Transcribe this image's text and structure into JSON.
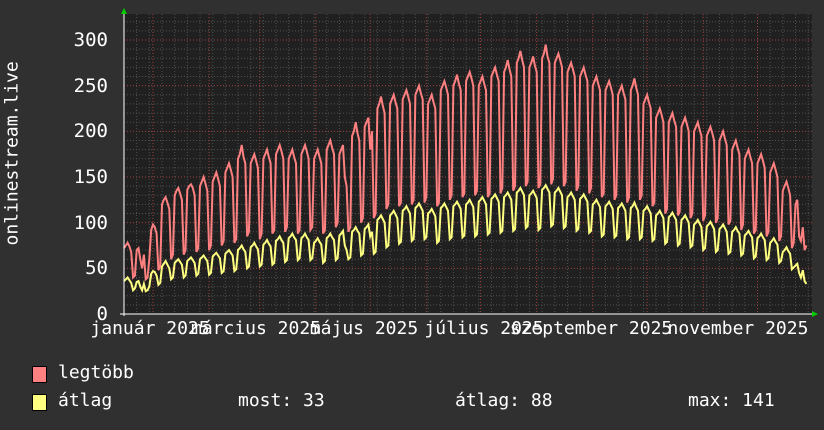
{
  "chart_data": {
    "type": "line",
    "ylabel": "onlinestream.live",
    "ylim": [
      0,
      330
    ],
    "yticks": [
      "0",
      "50",
      "100",
      "150",
      "200",
      "250",
      "300"
    ],
    "xticks": [
      "január 2025",
      "március 2025",
      "május 2025",
      "július 2025",
      "szeptember 2025",
      "november 2025"
    ],
    "x_start": "2024-12-16",
    "x_step": "1 day",
    "grid": true,
    "colors": {
      "background": "#303030",
      "plot": "#202020",
      "grid_minor": "#505050",
      "grid_major": "#a04040",
      "arrow": "#00cc00"
    },
    "series": [
      {
        "name": "legtöbb",
        "color": "#ff8080",
        "values": [
          72,
          75,
          78,
          74,
          68,
          40,
          42,
          70,
          72,
          60,
          50,
          65,
          38,
          40,
          60,
          92,
          98,
          95,
          88,
          48,
          52,
          120,
          125,
          128,
          122,
          115,
          60,
          65,
          130,
          135,
          138,
          132,
          125,
          65,
          70,
          136,
          140,
          142,
          138,
          130,
          68,
          72,
          140,
          145,
          150,
          143,
          135,
          70,
          75,
          145,
          150,
          155,
          148,
          140,
          75,
          80,
          155,
          160,
          165,
          158,
          150,
          78,
          82,
          170,
          175,
          185,
          172,
          165,
          85,
          90,
          165,
          170,
          175,
          168,
          160,
          82,
          88,
          170,
          175,
          180,
          172,
          165,
          88,
          92,
          175,
          180,
          185,
          178,
          170,
          90,
          95,
          170,
          175,
          180,
          172,
          165,
          88,
          92,
          175,
          180,
          185,
          178,
          170,
          92,
          95,
          170,
          175,
          180,
          172,
          165,
          88,
          92,
          180,
          185,
          190,
          182,
          175,
          95,
          100,
          175,
          180,
          185,
          150,
          140,
          90,
          95,
          195,
          200,
          210,
          198,
          190,
          100,
          105,
          205,
          210,
          215,
          180,
          200,
          105,
          110,
          225,
          230,
          238,
          228,
          220,
          115,
          120,
          230,
          235,
          240,
          232,
          225,
          118,
          122,
          235,
          240,
          245,
          238,
          230,
          120,
          125,
          240,
          245,
          250,
          242,
          235,
          122,
          128,
          230,
          235,
          240,
          232,
          225,
          118,
          122,
          245,
          250,
          255,
          248,
          240,
          125,
          130,
          250,
          255,
          262,
          252,
          245,
          128,
          132,
          255,
          260,
          265,
          258,
          250,
          130,
          135,
          250,
          255,
          260,
          252,
          245,
          128,
          132,
          260,
          265,
          270,
          262,
          255,
          132,
          138,
          265,
          270,
          278,
          268,
          260,
          135,
          140,
          275,
          280,
          288,
          278,
          270,
          140,
          145,
          270,
          275,
          282,
          272,
          265,
          138,
          142,
          280,
          285,
          295,
          282,
          275,
          142,
          148,
          275,
          280,
          285,
          278,
          270,
          140,
          145,
          265,
          270,
          275,
          268,
          260,
          135,
          140,
          260,
          265,
          270,
          262,
          255,
          132,
          138,
          250,
          255,
          260,
          252,
          245,
          128,
          132,
          245,
          250,
          255,
          248,
          240,
          125,
          130,
          240,
          245,
          250,
          242,
          235,
          122,
          128,
          245,
          250,
          258,
          248,
          240,
          125,
          130,
          230,
          235,
          240,
          232,
          225,
          118,
          122,
          215,
          220,
          225,
          218,
          210,
          110,
          115,
          210,
          215,
          220,
          212,
          205,
          108,
          112,
          205,
          210,
          215,
          208,
          200,
          105,
          110,
          200,
          205,
          210,
          202,
          195,
          102,
          108,
          195,
          200,
          205,
          198,
          190,
          100,
          105,
          190,
          195,
          200,
          192,
          185,
          98,
          102,
          180,
          185,
          190,
          182,
          175,
          92,
          98,
          170,
          175,
          180,
          172,
          165,
          88,
          92,
          165,
          170,
          175,
          168,
          160,
          85,
          90,
          155,
          160,
          165,
          158,
          150,
          80,
          85,
          135,
          140,
          145,
          138,
          130,
          72,
          78,
          120,
          125,
          85,
          80,
          95,
          70,
          75
        ]
      },
      {
        "name": "átlag",
        "color": "#ffff80",
        "values": [
          36,
          38,
          40,
          37,
          34,
          26,
          28,
          35,
          36,
          30,
          26,
          33,
          25,
          26,
          30,
          44,
          47,
          46,
          42,
          32,
          34,
          52,
          55,
          58,
          54,
          50,
          38,
          40,
          56,
          58,
          60,
          57,
          54,
          40,
          42,
          58,
          60,
          62,
          59,
          56,
          42,
          44,
          60,
          62,
          64,
          61,
          58,
          43,
          45,
          63,
          65,
          67,
          64,
          61,
          45,
          47,
          66,
          68,
          70,
          67,
          64,
          47,
          49,
          70,
          72,
          75,
          71,
          68,
          50,
          52,
          73,
          75,
          78,
          74,
          71,
          52,
          54,
          76,
          78,
          81,
          77,
          74,
          54,
          56,
          80,
          82,
          85,
          81,
          78,
          57,
          59,
          83,
          85,
          88,
          84,
          81,
          59,
          61,
          83,
          85,
          88,
          84,
          81,
          59,
          61,
          78,
          80,
          83,
          79,
          76,
          56,
          58,
          83,
          85,
          88,
          84,
          81,
          59,
          61,
          86,
          88,
          91,
          75,
          70,
          60,
          62,
          90,
          92,
          95,
          91,
          88,
          64,
          66,
          93,
          95,
          98,
          85,
          90,
          66,
          68,
          103,
          105,
          108,
          104,
          100,
          73,
          75,
          108,
          110,
          113,
          109,
          105,
          77,
          79,
          113,
          115,
          118,
          114,
          110,
          80,
          82,
          116,
          118,
          121,
          117,
          113,
          82,
          84,
          110,
          112,
          115,
          111,
          107,
          78,
          80,
          116,
          118,
          121,
          117,
          113,
          82,
          84,
          118,
          120,
          123,
          119,
          115,
          84,
          86,
          120,
          122,
          125,
          121,
          117,
          85,
          87,
          123,
          125,
          128,
          124,
          120,
          87,
          89,
          126,
          128,
          131,
          127,
          123,
          89,
          91,
          128,
          130,
          133,
          129,
          125,
          91,
          93,
          133,
          135,
          138,
          134,
          130,
          94,
          96,
          130,
          132,
          135,
          131,
          127,
          92,
          94,
          136,
          138,
          141,
          137,
          133,
          96,
          98,
          133,
          135,
          138,
          134,
          130,
          94,
          96,
          128,
          130,
          133,
          129,
          125,
          91,
          93,
          126,
          128,
          131,
          127,
          123,
          89,
          91,
          120,
          122,
          125,
          121,
          117,
          85,
          87,
          118,
          120,
          123,
          119,
          115,
          84,
          86,
          116,
          118,
          121,
          117,
          113,
          82,
          84,
          116,
          118,
          122,
          117,
          113,
          82,
          84,
          113,
          115,
          118,
          114,
          110,
          80,
          82,
          108,
          110,
          113,
          109,
          105,
          77,
          79,
          106,
          108,
          111,
          107,
          103,
          75,
          77,
          103,
          105,
          108,
          104,
          100,
          73,
          75,
          98,
          100,
          103,
          99,
          95,
          70,
          72,
          96,
          98,
          101,
          97,
          93,
          68,
          70,
          93,
          95,
          98,
          94,
          90,
          66,
          68,
          90,
          92,
          95,
          91,
          88,
          64,
          66,
          86,
          88,
          91,
          87,
          84,
          61,
          63,
          83,
          85,
          88,
          84,
          81,
          59,
          61,
          78,
          80,
          83,
          79,
          76,
          56,
          58,
          68,
          70,
          73,
          69,
          66,
          49,
          51,
          53,
          55,
          45,
          40,
          48,
          36,
          33
        ]
      }
    ]
  },
  "legend": {
    "max_label": "legtöbb",
    "avg_label": "átlag",
    "now": "most: 33",
    "average": "átlag: 88",
    "maximum": "max: 141"
  }
}
